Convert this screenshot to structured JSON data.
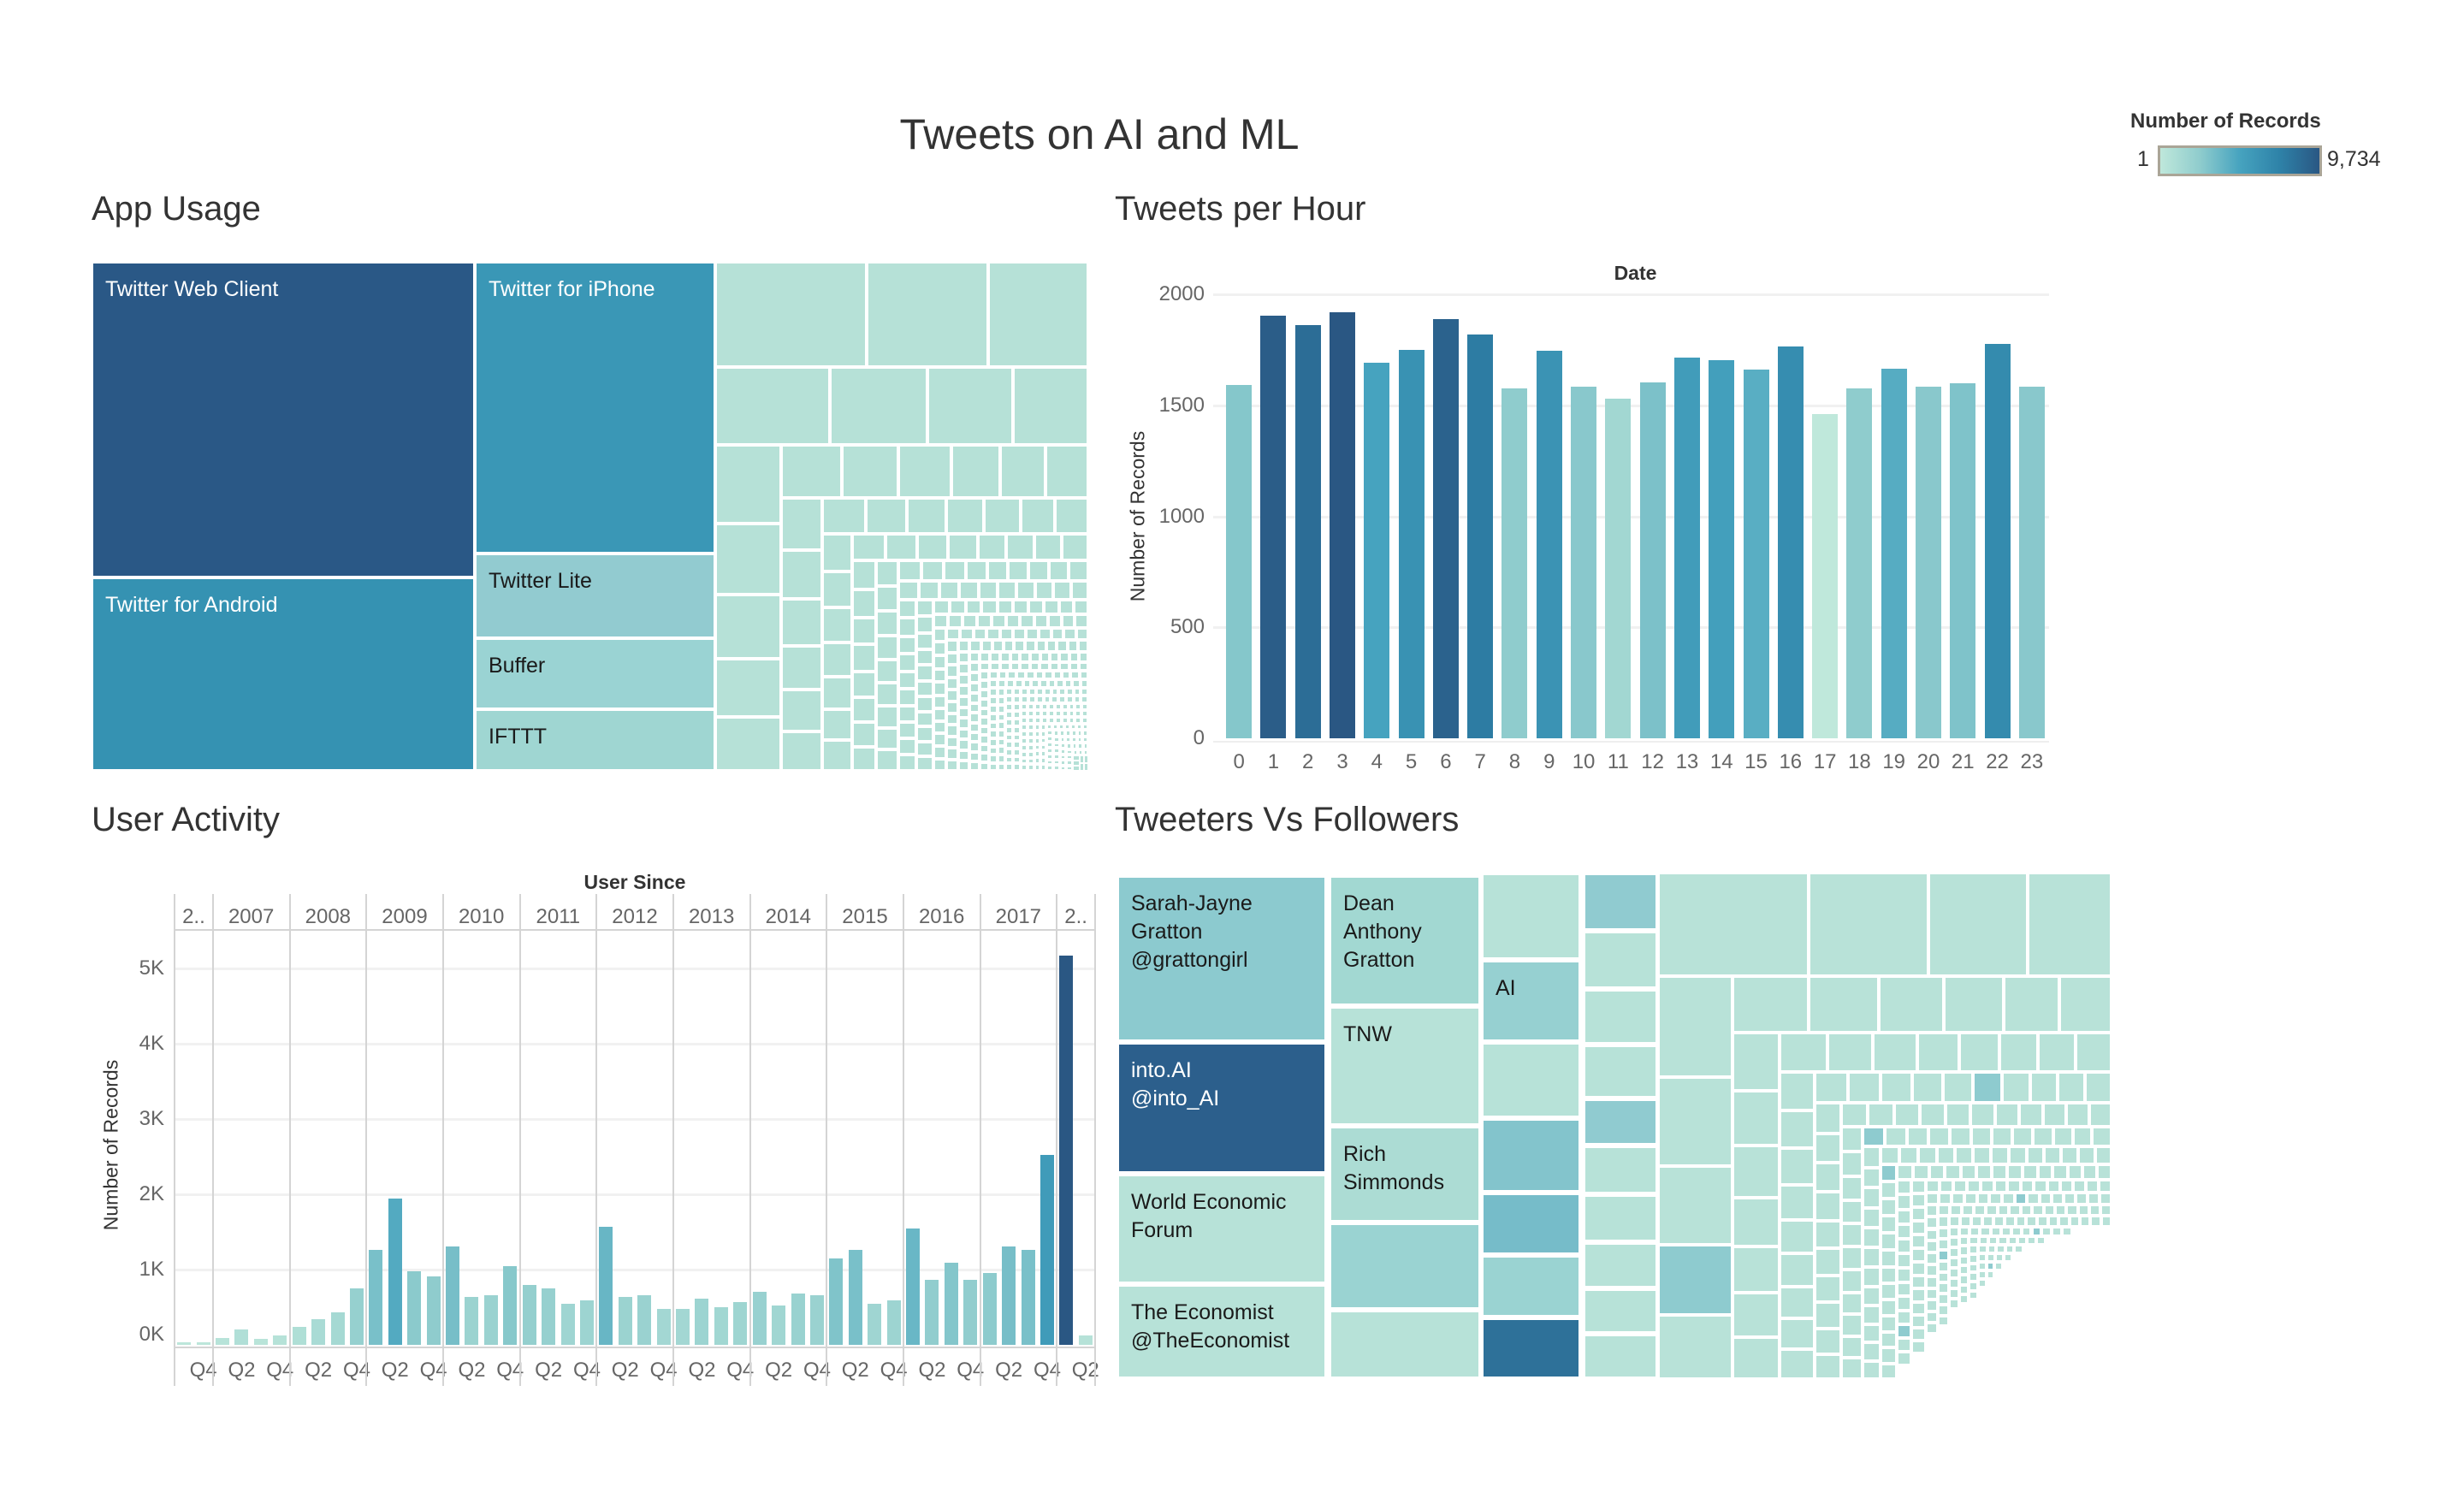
{
  "dashboard": {
    "title": "Tweets on AI and ML"
  },
  "legend": {
    "title": "Number of Records",
    "min_label": "1",
    "max_label": "9,734",
    "colors": [
      "#bfe8db",
      "#8fcccd",
      "#46a3bf",
      "#2e82a8",
      "#2a5783"
    ]
  },
  "app_usage": {
    "title": "App Usage",
    "tiles": [
      {
        "label": "Twitter Web Client",
        "color": "#2a5886",
        "text_color": "#ffffff"
      },
      {
        "label": "Twitter for Android",
        "color": "#3592b2",
        "text_color": "#ffffff"
      },
      {
        "label": "Twitter for iPhone",
        "color": "#3a97b6",
        "text_color": "#ffffff"
      },
      {
        "label": "Twitter Lite",
        "color": "#92cbd0",
        "text_color": "#1a1a1a"
      },
      {
        "label": "Buffer",
        "color": "#9ad3d3",
        "text_color": "#1a1a1a"
      },
      {
        "label": "IFTTT",
        "color": "#9fd6d2",
        "text_color": "#1a1a1a"
      }
    ],
    "other_tile_color": "#b6e1d7"
  },
  "tweeters": {
    "title": "Tweeters Vs Followers",
    "tiles": [
      {
        "label": "Sarah-Jayne\nGratton\n@grattongirl",
        "color": "#8ccacf",
        "text_color": "#1a1a1a"
      },
      {
        "label": "into.AI\n@into_AI",
        "color": "#2c5f8c",
        "text_color": "#ffffff"
      },
      {
        "label": "World Economic\nForum",
        "color": "#b7e2d8",
        "text_color": "#1a1a1a"
      },
      {
        "label": "The Economist\n@TheEconomist",
        "color": "#b7e2d8",
        "text_color": "#1a1a1a"
      },
      {
        "label": "Dean\nAnthony\nGratton",
        "color": "#a2d8d2",
        "text_color": "#1a1a1a"
      },
      {
        "label": "TNW",
        "color": "#b7e2d8",
        "text_color": "#1a1a1a"
      },
      {
        "label": "Rich\nSimmonds",
        "color": "#acdcd4",
        "text_color": "#1a1a1a"
      },
      {
        "label": "AI",
        "color": "#96d0d1",
        "text_color": "#1a1a1a"
      }
    ],
    "other_tile_color": "#b8e2d8"
  },
  "chart_data": [
    {
      "type": "bar",
      "title": "Tweets per Hour",
      "xlabel": "Date",
      "ylabel": "Number of Records",
      "categories": [
        "0",
        "1",
        "2",
        "3",
        "4",
        "5",
        "6",
        "7",
        "8",
        "9",
        "10",
        "11",
        "12",
        "13",
        "14",
        "15",
        "16",
        "17",
        "18",
        "19",
        "20",
        "21",
        "22",
        "23"
      ],
      "values": [
        1590,
        1905,
        1860,
        1920,
        1690,
        1750,
        1890,
        1820,
        1575,
        1745,
        1585,
        1530,
        1605,
        1715,
        1705,
        1660,
        1765,
        1460,
        1575,
        1665,
        1585,
        1600,
        1775,
        1585
      ],
      "ylim": [
        0,
        2000
      ],
      "yticks": [
        "0",
        "500",
        "1000",
        "1500",
        "2000"
      ],
      "grid": true,
      "color_by": "value"
    },
    {
      "type": "bar",
      "title": "User Activity",
      "xlabel": "User Since",
      "ylabel": "Number of Records",
      "year_headers": [
        "2..",
        "2007",
        "2008",
        "2009",
        "2010",
        "2011",
        "2012",
        "2013",
        "2014",
        "2015",
        "2016",
        "2017",
        "2.."
      ],
      "quarters_per_year": [
        2,
        4,
        4,
        4,
        4,
        4,
        4,
        4,
        4,
        4,
        4,
        4,
        2
      ],
      "quarter_labels": [
        [
          "",
          "Q4"
        ],
        [
          "",
          "Q2",
          "",
          "Q4"
        ],
        [
          "",
          "Q2",
          "",
          "Q4"
        ],
        [
          "",
          "Q2",
          "",
          "Q4"
        ],
        [
          "",
          "Q2",
          "",
          "Q4"
        ],
        [
          "",
          "Q2",
          "",
          "Q4"
        ],
        [
          "",
          "Q2",
          "",
          "Q4"
        ],
        [
          "",
          "Q2",
          "",
          "Q4"
        ],
        [
          "",
          "Q2",
          "",
          "Q4"
        ],
        [
          "",
          "Q2",
          "",
          "Q4"
        ],
        [
          "",
          "Q2",
          "",
          "Q4"
        ],
        [
          "",
          "Q2",
          "",
          "Q4"
        ],
        [
          "",
          "Q2"
        ]
      ],
      "values": [
        30,
        30,
        95,
        210,
        75,
        120,
        235,
        345,
        435,
        750,
        1265,
        1940,
        975,
        910,
        1310,
        640,
        660,
        1040,
        795,
        750,
        545,
        590,
        1570,
        640,
        660,
        475,
        475,
        615,
        500,
        570,
        700,
        525,
        685,
        660,
        1150,
        1265,
        545,
        590,
        1540,
        860,
        1090,
        860,
        950,
        1310,
        1265,
        2520,
        5175,
        120
      ],
      "ylim": [
        0,
        5500
      ],
      "yticks": [
        "0K",
        "1K",
        "2K",
        "3K",
        "4K",
        "5K"
      ],
      "grid": true,
      "color_by": "value"
    }
  ]
}
